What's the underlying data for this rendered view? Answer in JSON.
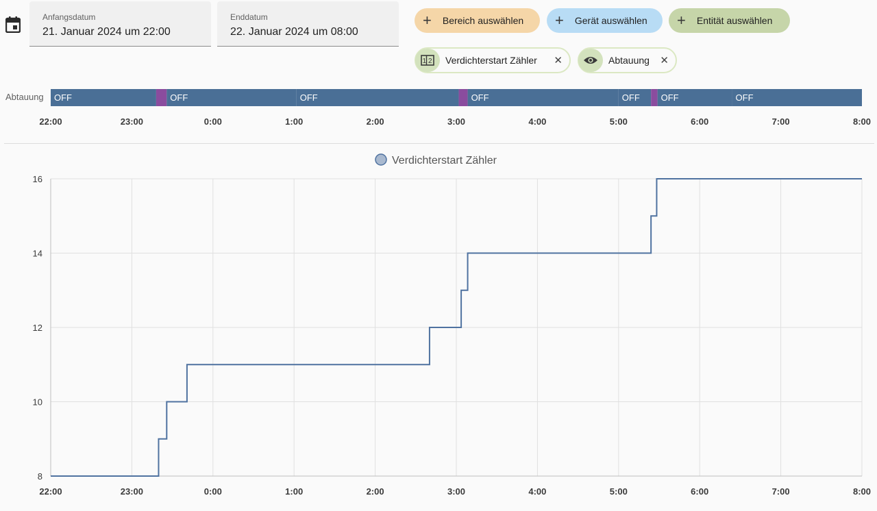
{
  "date_range": {
    "start_label": "Anfangsdatum",
    "start_value": "21. Januar 2024 um 22:00",
    "end_label": "Enddatum",
    "end_value": "22. Januar 2024 um 08:00"
  },
  "target_picker": {
    "area_label": "Bereich auswählen",
    "device_label": "Gerät auswählen",
    "entity_label": "Entität auswählen"
  },
  "selected_chips": [
    {
      "label": "Verdichterstart Zähler",
      "icon": "counter-icon"
    },
    {
      "label": "Abtauung",
      "icon": "eye-icon"
    }
  ],
  "colors": {
    "area_chip": "#f5d6a8",
    "device_chip": "#b8dcf5",
    "entity_chip": "#c6d5a9",
    "timeline_off": "#4a6f96",
    "timeline_on": "#8a4c9e",
    "line": "#4f72a0"
  },
  "timeline": {
    "entity_label": "Abtauung",
    "segments": [
      {
        "state": "OFF",
        "start": 0,
        "end": 1.3
      },
      {
        "state": "ON",
        "start": 1.3,
        "end": 1.43
      },
      {
        "state": "OFF",
        "start": 1.43,
        "end": 3.03
      },
      {
        "state": "OFF",
        "start": 3.03,
        "end": 5.03
      },
      {
        "state": "ON",
        "start": 5.03,
        "end": 5.14
      },
      {
        "state": "OFF",
        "start": 5.14,
        "end": 7.0
      },
      {
        "state": "OFF",
        "start": 7.0,
        "end": 7.4
      },
      {
        "state": "ON",
        "start": 7.4,
        "end": 7.48
      },
      {
        "state": "OFF",
        "start": 7.48,
        "end": 8.4
      },
      {
        "state": "OFF",
        "start": 8.4,
        "end": 10
      }
    ],
    "ticks": [
      "22:00",
      "23:00",
      "0:00",
      "1:00",
      "2:00",
      "3:00",
      "4:00",
      "5:00",
      "6:00",
      "7:00",
      "8:00"
    ]
  },
  "chart_data": {
    "type": "line",
    "step": true,
    "legend": "Verdichterstart Zähler",
    "legend_position": "top-center",
    "x_unit": "hours since 22:00",
    "xlim": [
      0,
      10
    ],
    "ylim": [
      8,
      16
    ],
    "yticks": [
      8,
      10,
      12,
      14,
      16
    ],
    "xticks": [
      "22:00",
      "23:00",
      "0:00",
      "1:00",
      "2:00",
      "3:00",
      "4:00",
      "5:00",
      "6:00",
      "7:00",
      "8:00"
    ],
    "grid": true,
    "series": [
      {
        "name": "Verdichterstart Zähler",
        "points": [
          [
            0,
            8
          ],
          [
            1.33,
            9
          ],
          [
            1.43,
            10
          ],
          [
            1.68,
            11
          ],
          [
            4.67,
            12
          ],
          [
            5.06,
            13
          ],
          [
            5.14,
            14
          ],
          [
            7.4,
            15
          ],
          [
            7.47,
            16
          ],
          [
            10,
            16
          ]
        ]
      }
    ]
  }
}
